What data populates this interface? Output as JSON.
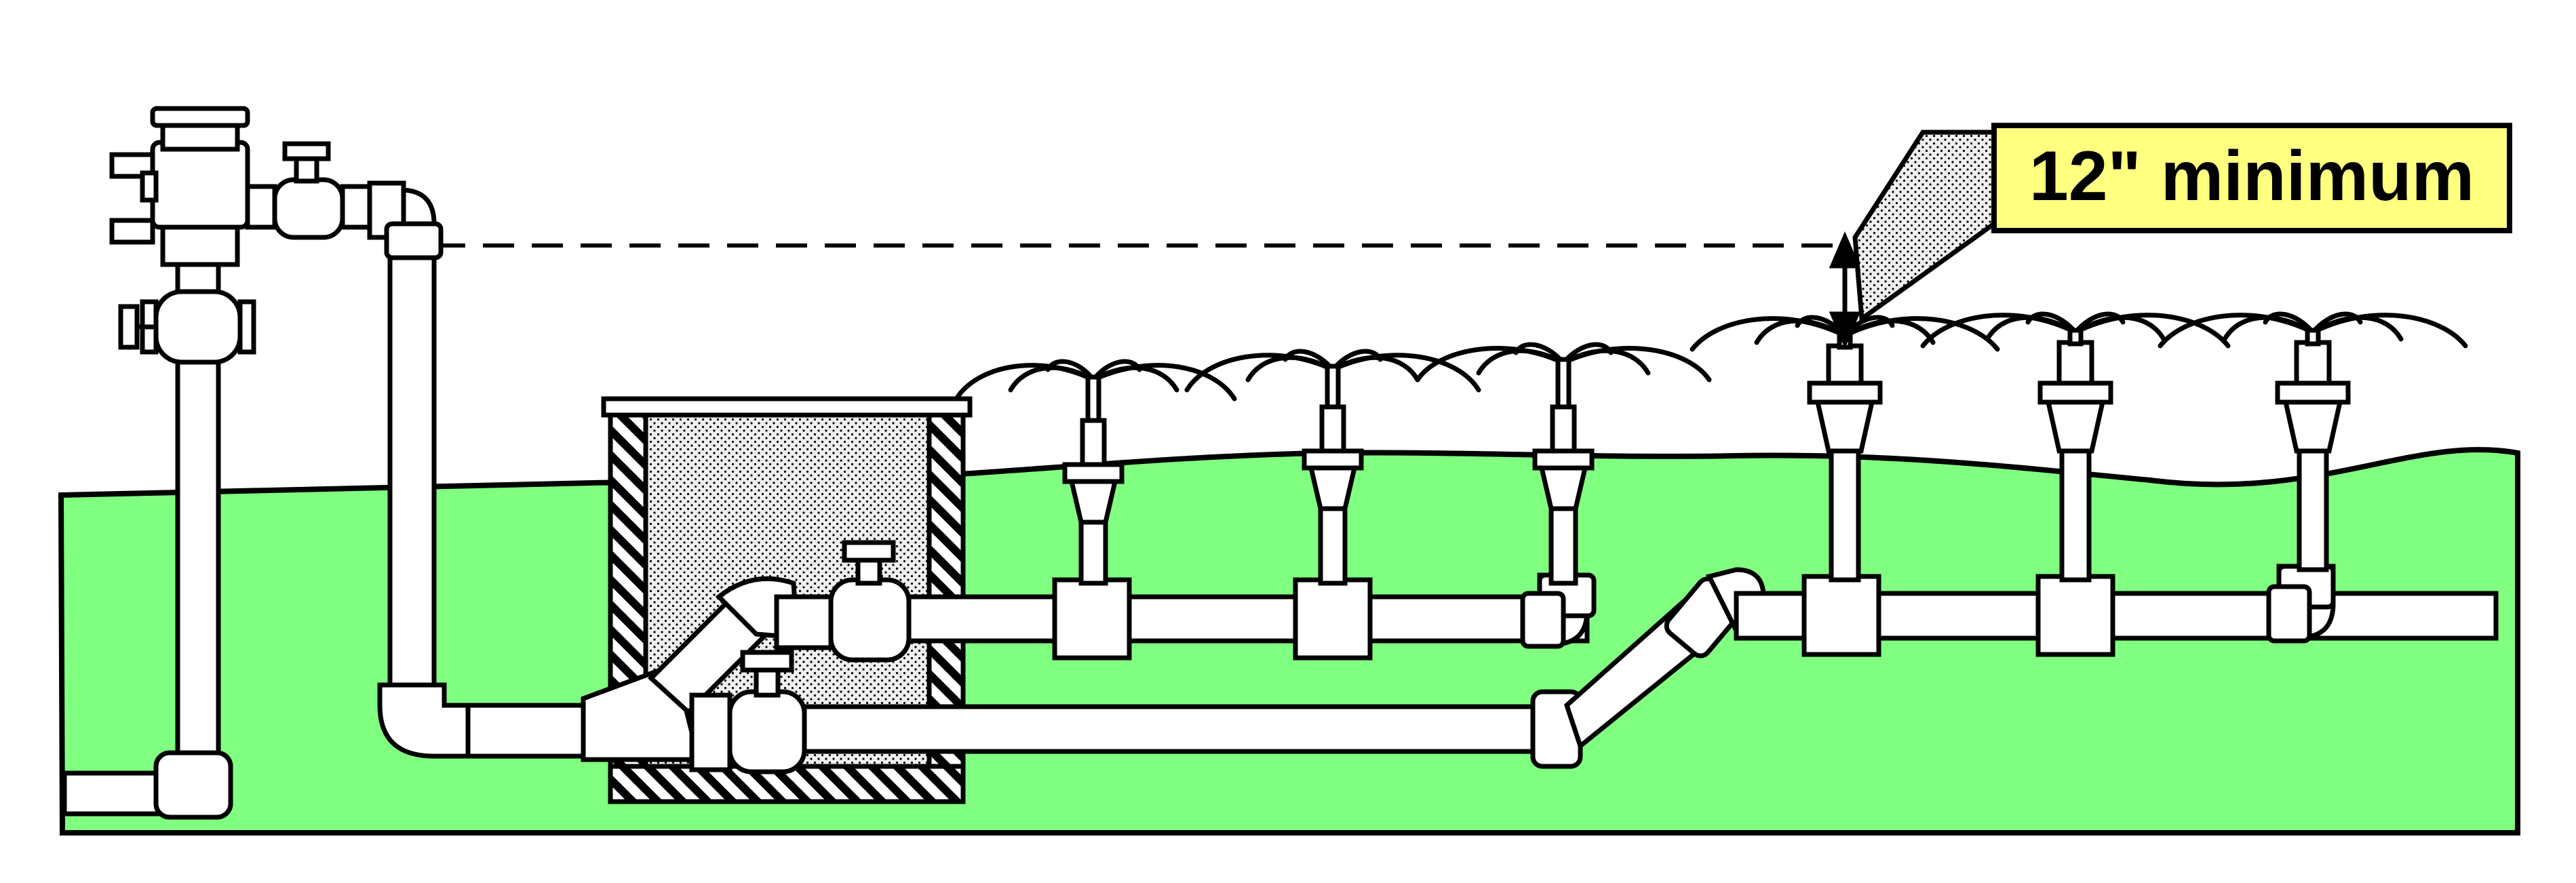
{
  "callout": {
    "label": "12\" minimum"
  },
  "colors": {
    "ground": "#80FF80",
    "callout_fill": "#FFFF80",
    "outline": "#000000",
    "pipe": "#FFFFFF",
    "stipple_bg": "#EDEDED"
  }
}
